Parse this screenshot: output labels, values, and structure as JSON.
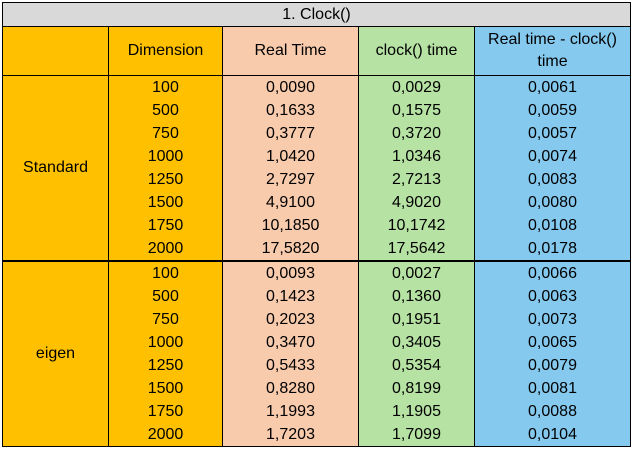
{
  "table": {
    "title": "1. Clock()",
    "headers": [
      "",
      "Dimension",
      "Real Time",
      "clock() time",
      "Real time - clock() time"
    ],
    "groups": [
      {
        "label": "Standard",
        "rows": [
          [
            "100",
            "0,0090",
            "0,0029",
            "0,0061"
          ],
          [
            "500",
            "0,1633",
            "0,1575",
            "0,0059"
          ],
          [
            "750",
            "0,3777",
            "0,3720",
            "0,0057"
          ],
          [
            "1000",
            "1,0420",
            "1,0346",
            "0,0074"
          ],
          [
            "1250",
            "2,7297",
            "2,7213",
            "0,0083"
          ],
          [
            "1500",
            "4,9100",
            "4,9020",
            "0,0080"
          ],
          [
            "1750",
            "10,1850",
            "10,1742",
            "0,0108"
          ],
          [
            "2000",
            "17,5820",
            "17,5642",
            "0,0178"
          ]
        ]
      },
      {
        "label": "eigen",
        "rows": [
          [
            "100",
            "0,0093",
            "0,0027",
            "0,0066"
          ],
          [
            "500",
            "0,1423",
            "0,1360",
            "0,0063"
          ],
          [
            "750",
            "0,2023",
            "0,1951",
            "0,0073"
          ],
          [
            "1000",
            "0,3470",
            "0,3405",
            "0,0065"
          ],
          [
            "1250",
            "0,5433",
            "0,5354",
            "0,0079"
          ],
          [
            "1500",
            "0,8280",
            "0,8199",
            "0,0081"
          ],
          [
            "1750",
            "1,1993",
            "1,1905",
            "0,0088"
          ],
          [
            "2000",
            "1,7203",
            "1,7099",
            "0,0104"
          ]
        ]
      }
    ],
    "colors": {
      "title_bg": "#d9d9d9",
      "gold": "#ffc000",
      "peach": "#f8cbad",
      "green": "#b6e2a3",
      "blue": "#85c9ef"
    }
  }
}
